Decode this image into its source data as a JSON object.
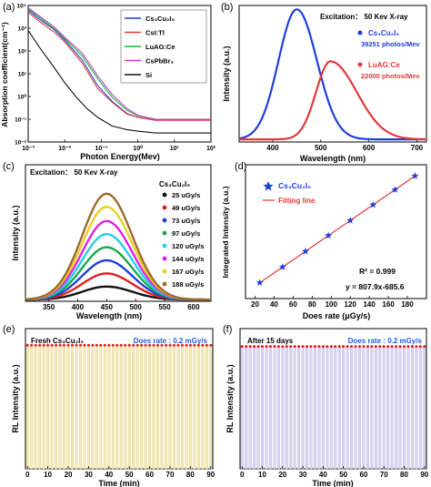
{
  "figure": {
    "colors": {
      "cs3cu2i5": "#1f3fdc",
      "csitl": "#e23a3a",
      "luagce": "#1fae3a",
      "cspbbr3": "#c241c2",
      "si": "#111111",
      "fitting": "#e23a3a",
      "dose_value": "#1f5fd6",
      "spectra": [
        "#111111",
        "#e02020",
        "#1f3fdc",
        "#18a84a",
        "#22cfe8",
        "#e020e0",
        "#e8d020",
        "#9b6b2a"
      ]
    }
  },
  "chart_data": [
    {
      "id": "a",
      "panel_label": "(a)",
      "type": "line",
      "xlabel": "Photon Energy(Mev)",
      "ylabel": "Absorption coefficient(cm⁻¹)",
      "xscale": "log",
      "yscale": "log",
      "xlim": [
        0.001,
        100
      ],
      "ylim": [
        0.01,
        10000
      ],
      "x_ticks": [
        0.001,
        0.01,
        0.1,
        1,
        10,
        100
      ],
      "y_ticks": [
        0.01,
        0.1,
        1,
        10,
        100,
        1000,
        10000
      ],
      "series": [
        {
          "name": "Cs₃Cu₂I₅",
          "color_key": "cs3cu2i5",
          "x": [
            0.001,
            0.002,
            0.005,
            0.01,
            0.03,
            0.08,
            0.2,
            0.5,
            1,
            3,
            10,
            100
          ],
          "y": [
            6000,
            2500,
            900,
            300,
            40,
            3,
            0.6,
            0.18,
            0.12,
            0.09,
            0.09,
            0.09
          ]
        },
        {
          "name": "CsI:Tl",
          "color_key": "csitl",
          "x": [
            0.001,
            0.002,
            0.005,
            0.01,
            0.03,
            0.08,
            0.2,
            0.5,
            1,
            3,
            10,
            100
          ],
          "y": [
            5000,
            2000,
            700,
            250,
            30,
            2.2,
            0.55,
            0.17,
            0.12,
            0.09,
            0.09,
            0.09
          ]
        },
        {
          "name": "LuAG:Ce",
          "color_key": "luagce",
          "x": [
            0.001,
            0.002,
            0.005,
            0.01,
            0.03,
            0.08,
            0.2,
            0.5,
            1,
            3,
            10,
            100
          ],
          "y": [
            7000,
            3000,
            1000,
            350,
            60,
            6,
            0.9,
            0.25,
            0.14,
            0.1,
            0.1,
            0.1
          ]
        },
        {
          "name": "CsPbBr₃",
          "color_key": "cspbbr3",
          "x": [
            0.001,
            0.002,
            0.005,
            0.01,
            0.03,
            0.08,
            0.2,
            0.5,
            1,
            3,
            10,
            100
          ],
          "y": [
            8000,
            3500,
            1200,
            400,
            80,
            8,
            1.2,
            0.3,
            0.15,
            0.1,
            0.1,
            0.1
          ]
        },
        {
          "name": "Si",
          "color_key": "si",
          "x": [
            0.001,
            0.002,
            0.005,
            0.01,
            0.02,
            0.04,
            0.08,
            0.2,
            0.5,
            1,
            3,
            10,
            100
          ],
          "y": [
            800,
            150,
            20,
            4,
            1,
            0.3,
            0.12,
            0.05,
            0.035,
            0.03,
            0.025,
            0.025,
            0.025
          ]
        }
      ]
    },
    {
      "id": "b",
      "panel_label": "(b)",
      "type": "line",
      "title": "Excitation： 50 Kev X-ray",
      "xlabel": "Wavelength (nm)",
      "ylabel": "Intensity (a.u.)",
      "xlim": [
        330,
        720
      ],
      "ylim": [
        0,
        1.05
      ],
      "x_ticks": [
        400,
        500,
        600,
        700
      ],
      "series": [
        {
          "name": "Cs₃Cu₂I₅",
          "note": "39251  photos/Mev",
          "color_key": "cs3cu2i5",
          "peak": 450,
          "width_left": 38,
          "width_right": 42,
          "amplitude": 1.0
        },
        {
          "name": "LuAG:Ce",
          "note": "22000  photos/Mev",
          "color_key": "csitl",
          "peak": 520,
          "width_left": 30,
          "width_right": 55,
          "amplitude": 0.6
        }
      ]
    },
    {
      "id": "c",
      "panel_label": "(c)",
      "type": "line",
      "title": "Excitation： 50 Kev X-ray",
      "legend_title": "Cs₃Cu₂I₅",
      "xlabel": "Wavelength (nm)",
      "ylabel": "Intensity (a.u.)",
      "xlim": [
        310,
        630
      ],
      "ylim": [
        0,
        1.25
      ],
      "x_ticks": [
        350,
        400,
        450,
        500,
        550,
        600
      ],
      "peak": 450,
      "width": 42,
      "series": [
        {
          "name": "25 uGy/s",
          "amplitude": 0.12
        },
        {
          "name": "49 uGy/s",
          "amplitude": 0.24
        },
        {
          "name": "73 uGy/s",
          "amplitude": 0.36
        },
        {
          "name": "97 uGy/s",
          "amplitude": 0.48
        },
        {
          "name": "120 uGy/s",
          "amplitude": 0.6
        },
        {
          "name": "144 uGy/s",
          "amplitude": 0.72
        },
        {
          "name": "167 uGy/s",
          "amplitude": 0.85
        },
        {
          "name": "188 uGy/s",
          "amplitude": 0.97
        }
      ]
    },
    {
      "id": "d",
      "panel_label": "(d)",
      "type": "scatter",
      "xlabel": "Does rate (μGy/s)",
      "ylabel": "Integrated Intensity (a.u.)",
      "xlim": [
        10,
        200
      ],
      "ylim": [
        0,
        165000
      ],
      "x_ticks": [
        20,
        40,
        60,
        80,
        100,
        120,
        140,
        160,
        180
      ],
      "series": [
        {
          "name": "Cs₃Cu₂I₅",
          "x": [
            25,
            49,
            73,
            97,
            120,
            144,
            167,
            188
          ],
          "y": [
            19512,
            38901,
            58290,
            77680,
            96261,
            115650,
            134231,
            151197
          ]
        }
      ],
      "fit": {
        "name": "Fitting line",
        "slope": 807.9,
        "intercept": -685.6,
        "x_range": [
          25,
          188
        ]
      },
      "annotations": [
        "R² = 0.999",
        "y = 807.9x-685.6"
      ]
    },
    {
      "id": "e",
      "panel_label": "(e)",
      "type": "bar",
      "title": "Fresh Cs₃Cu₂I₅",
      "dose_label": "Does rate : 0.2 mGy/s",
      "xlabel": "Time (min)",
      "ylabel": "RL Intensity (a.u.)",
      "xlim": [
        -1,
        91
      ],
      "ylim": [
        0,
        1.1
      ],
      "x_ticks": [
        0,
        10,
        20,
        30,
        40,
        50,
        60,
        70,
        80,
        90
      ],
      "bar_count": 46,
      "bar_spacing_min": 2,
      "level": 0.97,
      "bar_color": "#f5ecb4",
      "bar_edge": "#d9c98a"
    },
    {
      "id": "f",
      "panel_label": "(f)",
      "type": "bar",
      "title": "After 15 days",
      "dose_label": "Does rate : 0.2 mGy/s",
      "xlabel": "Time (min)",
      "ylabel": "RL Intensity (a.u.)",
      "xlim": [
        -1,
        91
      ],
      "ylim": [
        0,
        1.1
      ],
      "x_ticks": [
        0,
        10,
        20,
        30,
        40,
        50,
        60,
        70,
        80,
        90
      ],
      "bar_count": 46,
      "bar_spacing_min": 2,
      "level": 0.96,
      "bar_color": "#dcd6f2",
      "bar_edge": "#b6acdc"
    }
  ]
}
